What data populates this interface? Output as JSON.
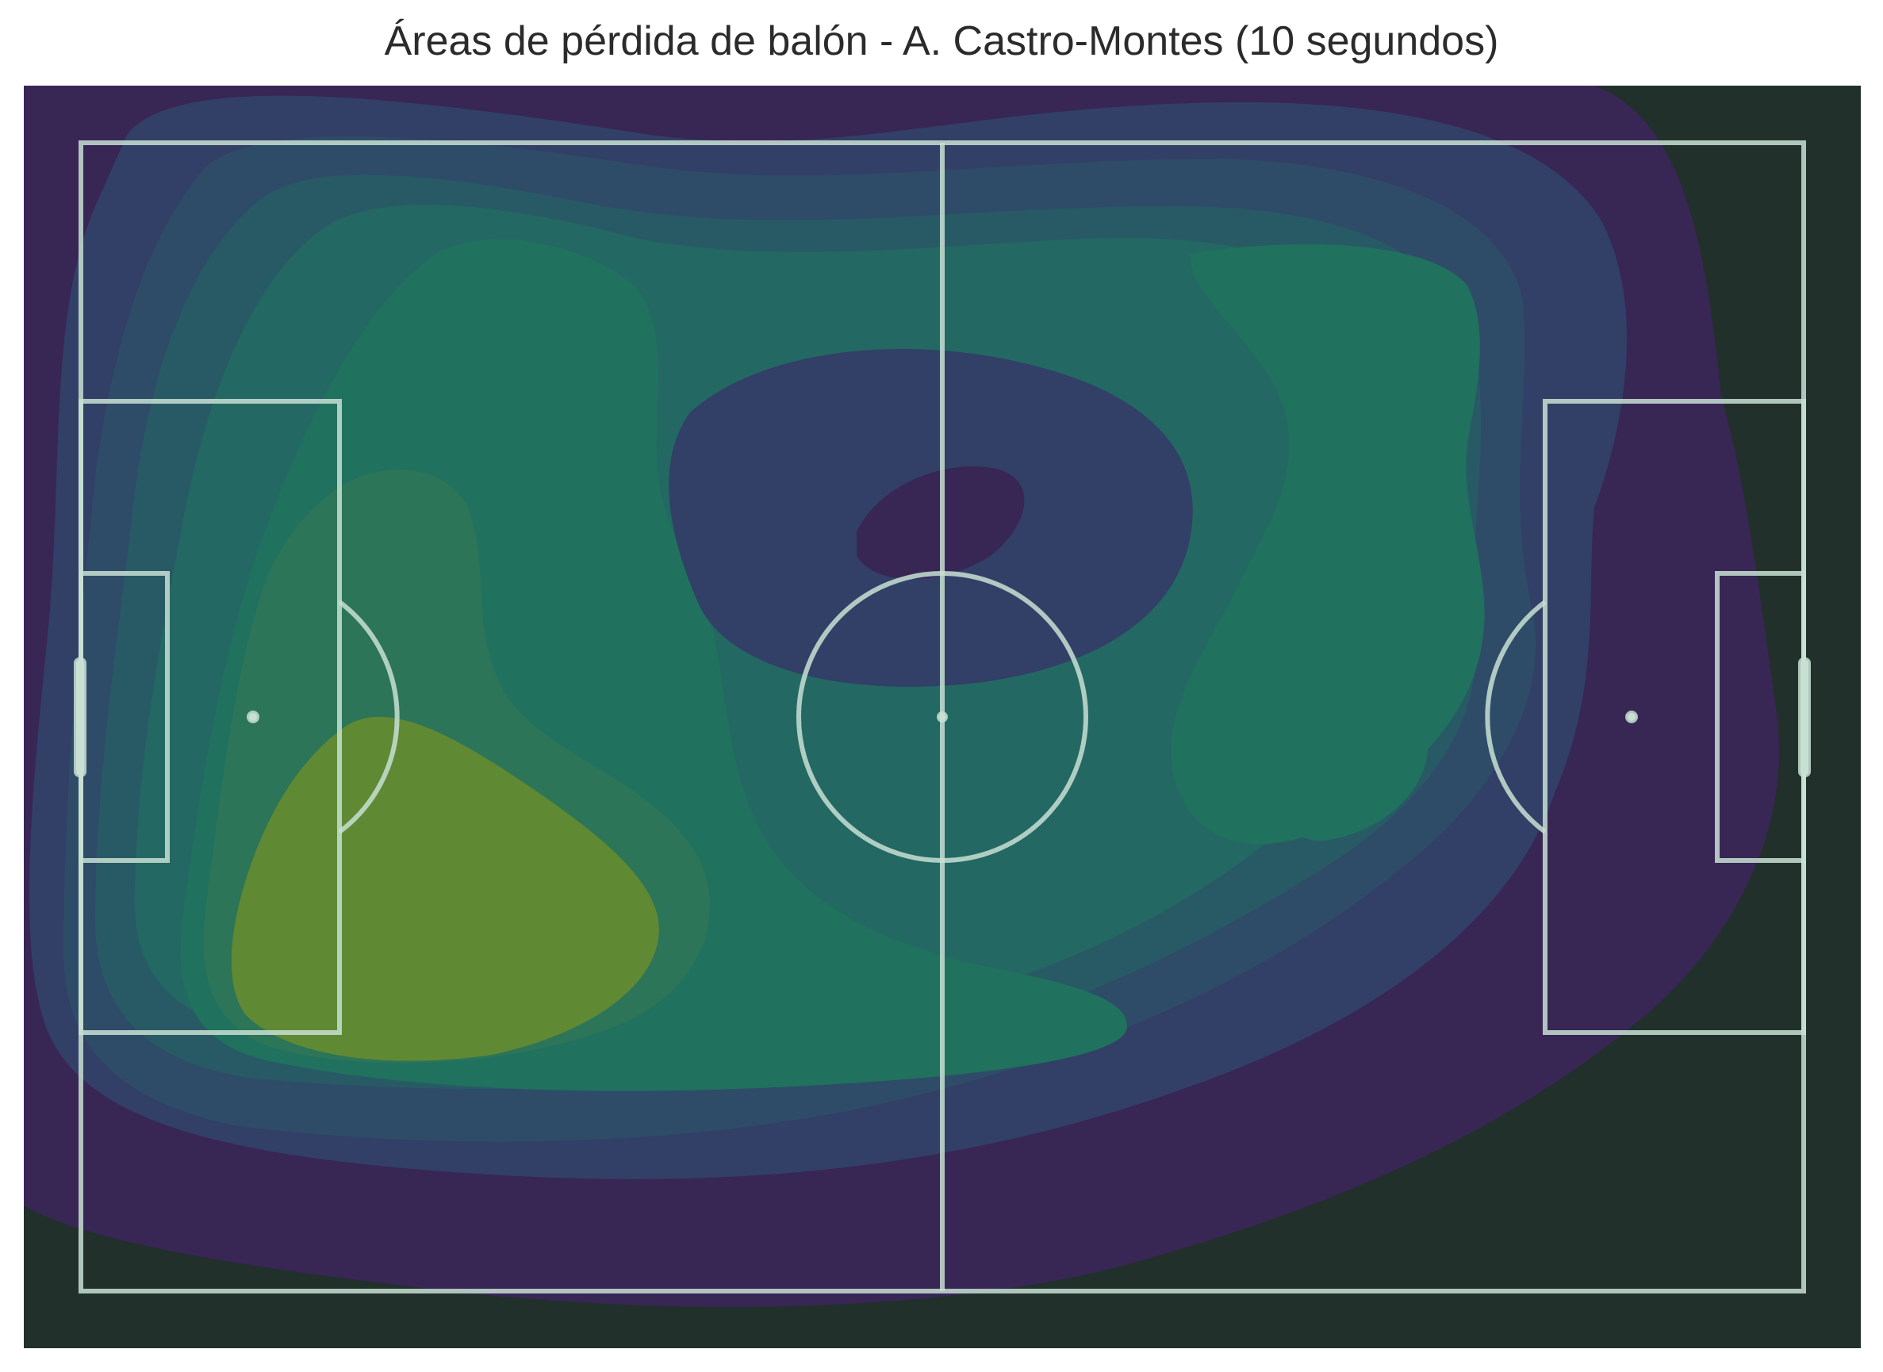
{
  "chart_data": {
    "type": "heatmap",
    "title": "Áreas de pérdida de balón - A. Castro-Montes (10 segundos)",
    "subtitle": "",
    "xlabel": "",
    "ylabel": "",
    "pitch": {
      "length": 120,
      "width": 80,
      "units": "StatsBomb pitch coordinates"
    },
    "xlim": [
      -4,
      124
    ],
    "ylim": [
      -4,
      84
    ],
    "grid": false,
    "legend": "none",
    "colormap": "viridis",
    "density_levels": 10,
    "density_peaks": [
      {
        "x": 22,
        "y": 55,
        "level": 10
      },
      {
        "x": 26,
        "y": 38,
        "level": 8
      },
      {
        "x": 88,
        "y": 44,
        "level": 7
      },
      {
        "x": 30,
        "y": 14,
        "level": 7
      },
      {
        "x": 86,
        "y": 16,
        "level": 5
      }
    ],
    "density_minimum": {
      "x": 60,
      "y": 30,
      "level": 1
    },
    "colors": {
      "background": "#22302c",
      "pitch_lines": "#c8e0d4",
      "level_1": "#382655",
      "level_2": "#323f66",
      "level_3": "#2e4c68",
      "level_4": "#285a66",
      "level_5": "#236863",
      "level_6": "#20715e",
      "level_7": "#2d7558",
      "level_8": "#608934",
      "level_10": "#b0d24a"
    }
  }
}
